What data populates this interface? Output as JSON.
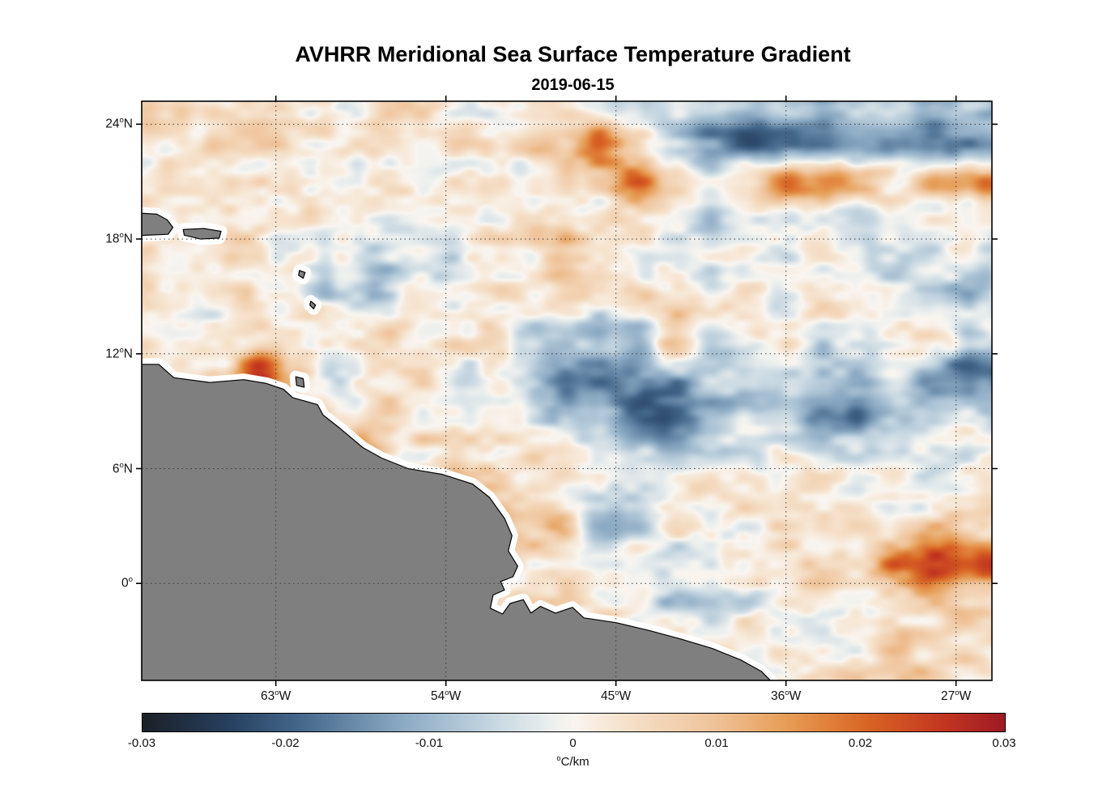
{
  "figure": {
    "title": "AVHRR Meridional Sea Surface Temperature Gradient",
    "subtitle": "2019-06-15"
  },
  "axes": {
    "lon_range": [
      -70.1,
      -25.1
    ],
    "lat_range": [
      -5.07,
      25.2
    ],
    "x_ticks": [
      {
        "lon": -63,
        "label": "63°W"
      },
      {
        "lon": -54,
        "label": "54°W"
      },
      {
        "lon": -45,
        "label": "45°W"
      },
      {
        "lon": -36,
        "label": "36°W"
      },
      {
        "lon": -27,
        "label": "27°W"
      }
    ],
    "y_ticks": [
      {
        "lat": 24,
        "label": "24°N"
      },
      {
        "lat": 18,
        "label": "18°N"
      },
      {
        "lat": 12,
        "label": "12°N"
      },
      {
        "lat": 6,
        "label": "6°N"
      },
      {
        "lat": 0,
        "label": "0°"
      }
    ],
    "grid_style": "dotted"
  },
  "colorbar": {
    "min": -0.03,
    "max": 0.03,
    "ticks": [
      "-0.03",
      "-0.02",
      "-0.01",
      "0",
      "0.01",
      "0.02",
      "0.03"
    ],
    "label": "°C/km",
    "stops": [
      {
        "t": 0.0,
        "c": "#1b2027"
      },
      {
        "t": 0.1,
        "c": "#27405f"
      },
      {
        "t": 0.18,
        "c": "#436689"
      },
      {
        "t": 0.3,
        "c": "#8aa9c3"
      },
      {
        "t": 0.41,
        "c": "#c8d8e2"
      },
      {
        "t": 0.48,
        "c": "#eff1ef"
      },
      {
        "t": 0.5,
        "c": "#f9f5f0"
      },
      {
        "t": 0.55,
        "c": "#f6e4d0"
      },
      {
        "t": 0.66,
        "c": "#efc49b"
      },
      {
        "t": 0.75,
        "c": "#e69b53"
      },
      {
        "t": 0.84,
        "c": "#d96524"
      },
      {
        "t": 0.93,
        "c": "#c23520"
      },
      {
        "t": 1.0,
        "c": "#9d1a24"
      }
    ]
  },
  "chart_data": {
    "type": "heatmap",
    "title": "AVHRR Meridional Sea Surface Temperature Gradient",
    "subtitle": "2019-06-15",
    "units": "°C/km",
    "value_range": [
      -0.03,
      0.03
    ],
    "xlabel_ticks": [
      "63°W",
      "54°W",
      "45°W",
      "36°W",
      "27°W"
    ],
    "ylabel_ticks": [
      "24°N",
      "18°N",
      "12°N",
      "6°N",
      "0°"
    ],
    "grid_lons": [
      -70,
      -68,
      -66,
      -64,
      -62,
      -60,
      -58,
      -56,
      -54,
      -52,
      -50,
      -48,
      -46,
      -44,
      -42,
      -40,
      -38,
      -36,
      -34,
      -32,
      -30,
      -28,
      -26
    ],
    "grid_lats": [
      25,
      23,
      21,
      19,
      17,
      15,
      13,
      11,
      9,
      7,
      5,
      3,
      1,
      -1,
      -3,
      -5
    ],
    "values_scale": 0.001,
    "values": [
      [
        2,
        2,
        1,
        2,
        2,
        3,
        2,
        2,
        1,
        2,
        3,
        4,
        2,
        -2,
        -4,
        -8,
        -6,
        -10,
        -12,
        -8,
        -6,
        -12,
        -8
      ],
      [
        2,
        2,
        2,
        3,
        2,
        2,
        3,
        2,
        3,
        2,
        3,
        8,
        20,
        10,
        -6,
        -15,
        -18,
        -14,
        -16,
        -12,
        -8,
        -14,
        -16
      ],
      [
        2,
        1,
        2,
        2,
        3,
        2,
        2,
        3,
        2,
        2,
        2,
        4,
        6,
        16,
        4,
        -4,
        6,
        18,
        20,
        10,
        2,
        12,
        16
      ],
      [
        2,
        2,
        2,
        2,
        2,
        1,
        2,
        2,
        2,
        2,
        2,
        6,
        3,
        2,
        -2,
        -4,
        -2,
        -4,
        -3,
        -6,
        -4,
        -2,
        -3
      ],
      [
        1,
        2,
        2,
        1,
        2,
        -2,
        -10,
        -4,
        -8,
        2,
        2,
        10,
        2,
        2,
        2,
        -2,
        -3,
        -2,
        -2,
        -4,
        -2,
        -2,
        -4
      ],
      [
        2,
        3,
        2,
        2,
        1,
        -4,
        -6,
        2,
        -2,
        2,
        3,
        2,
        2,
        2,
        2,
        2,
        2,
        -2,
        2,
        2,
        -2,
        -6,
        -8
      ],
      [
        2,
        2,
        2,
        4,
        2,
        2,
        2,
        2,
        2,
        2,
        -2,
        -8,
        -10,
        -6,
        8,
        -2,
        2,
        2,
        -2,
        -2,
        2,
        2,
        -4
      ],
      [
        2,
        2,
        4,
        28,
        6,
        -8,
        2,
        2,
        2,
        -4,
        -6,
        -16,
        -14,
        -12,
        -10,
        -4,
        -6,
        -4,
        -10,
        -12,
        -4,
        -14,
        -16
      ],
      [
        2,
        2,
        2,
        2,
        2,
        2,
        4,
        2,
        2,
        2,
        2,
        -6,
        -10,
        -18,
        -20,
        -14,
        -8,
        -4,
        -14,
        -16,
        -10,
        -4,
        -6
      ],
      [
        2,
        2,
        2,
        2,
        2,
        2,
        16,
        3,
        2,
        2,
        2,
        2,
        -4,
        -8,
        -10,
        -8,
        -6,
        2,
        -2,
        -4,
        -2,
        -4,
        -2
      ],
      [
        2,
        2,
        2,
        2,
        2,
        2,
        2,
        3,
        10,
        6,
        2,
        2,
        -4,
        -6,
        -4,
        2,
        2,
        2,
        2,
        -2,
        2,
        2,
        2
      ],
      [
        2,
        2,
        2,
        2,
        2,
        2,
        2,
        2,
        2,
        2,
        8,
        10,
        -8,
        -6,
        2,
        -2,
        2,
        2,
        2,
        2,
        2,
        8,
        4
      ],
      [
        2,
        2,
        2,
        2,
        2,
        2,
        2,
        2,
        2,
        2,
        2,
        2,
        2,
        2,
        -4,
        -2,
        2,
        2,
        4,
        6,
        18,
        28,
        26
      ],
      [
        2,
        2,
        2,
        2,
        2,
        2,
        2,
        2,
        2,
        2,
        2,
        2,
        2,
        2,
        -6,
        -8,
        -4,
        2,
        2,
        2,
        4,
        6,
        4
      ],
      [
        2,
        2,
        2,
        2,
        2,
        2,
        2,
        2,
        2,
        2,
        2,
        2,
        2,
        2,
        2,
        2,
        2,
        2,
        3,
        4,
        6,
        4,
        3
      ],
      [
        2,
        2,
        2,
        2,
        2,
        2,
        2,
        2,
        2,
        2,
        2,
        2,
        2,
        2,
        2,
        2,
        2,
        2,
        3,
        4,
        6,
        6,
        5
      ]
    ],
    "land_color": "#7f7f7f",
    "coast_halo_color": "#ffffff"
  },
  "land": {
    "color": "#7f7f7f",
    "halo": "#ffffff",
    "polygons": [
      {
        "name": "south-america",
        "points": [
          [
            -71,
            11.45
          ],
          [
            -69.2,
            11.45
          ],
          [
            -68.4,
            10.75
          ],
          [
            -66.5,
            10.5
          ],
          [
            -64.7,
            10.65
          ],
          [
            -63.5,
            10.45
          ],
          [
            -62.6,
            10.15
          ],
          [
            -62.1,
            9.7
          ],
          [
            -60.8,
            9.35
          ],
          [
            -60.5,
            8.8
          ],
          [
            -59.6,
            8.1
          ],
          [
            -58.4,
            7.1
          ],
          [
            -57.4,
            6.55
          ],
          [
            -56.0,
            6.0
          ],
          [
            -54.2,
            5.7
          ],
          [
            -52.6,
            5.2
          ],
          [
            -51.7,
            4.5
          ],
          [
            -50.9,
            3.4
          ],
          [
            -50.5,
            2.5
          ],
          [
            -50.7,
            1.7
          ],
          [
            -50.2,
            0.9
          ],
          [
            -50.45,
            0.35
          ],
          [
            -51.1,
            0.1
          ],
          [
            -50.9,
            -0.35
          ],
          [
            -51.5,
            -0.6
          ],
          [
            -51.65,
            -1.3
          ],
          [
            -51.0,
            -1.6
          ],
          [
            -50.6,
            -1.05
          ],
          [
            -49.9,
            -0.85
          ],
          [
            -49.5,
            -1.55
          ],
          [
            -49.0,
            -1.2
          ],
          [
            -48.2,
            -1.55
          ],
          [
            -47.3,
            -1.25
          ],
          [
            -46.7,
            -1.8
          ],
          [
            -45.0,
            -2.05
          ],
          [
            -43.3,
            -2.45
          ],
          [
            -41.6,
            -2.9
          ],
          [
            -39.9,
            -3.4
          ],
          [
            -38.4,
            -4.0
          ],
          [
            -37.3,
            -4.6
          ],
          [
            -36.5,
            -5.4
          ],
          [
            -36.3,
            -6.2
          ],
          [
            -71,
            -6.2
          ]
        ]
      },
      {
        "name": "hispaniola-east",
        "points": [
          [
            -71,
            19.4
          ],
          [
            -69.3,
            19.3
          ],
          [
            -68.75,
            19.0
          ],
          [
            -68.45,
            18.6
          ],
          [
            -68.7,
            18.25
          ],
          [
            -71,
            18.15
          ]
        ]
      },
      {
        "name": "puerto-rico",
        "points": [
          [
            -67.9,
            18.5
          ],
          [
            -66.8,
            18.55
          ],
          [
            -65.9,
            18.4
          ],
          [
            -66.0,
            18.05
          ],
          [
            -67.0,
            18.0
          ],
          [
            -67.85,
            18.2
          ]
        ]
      },
      {
        "name": "guadeloupe",
        "points": [
          [
            -61.75,
            16.35
          ],
          [
            -61.45,
            16.25
          ],
          [
            -61.55,
            15.95
          ],
          [
            -61.8,
            16.1
          ]
        ]
      },
      {
        "name": "martinique",
        "points": [
          [
            -61.15,
            14.75
          ],
          [
            -60.9,
            14.55
          ],
          [
            -61.0,
            14.35
          ],
          [
            -61.2,
            14.55
          ]
        ]
      },
      {
        "name": "trinidad",
        "points": [
          [
            -61.95,
            10.8
          ],
          [
            -61.55,
            10.7
          ],
          [
            -61.5,
            10.25
          ],
          [
            -61.9,
            10.35
          ]
        ]
      }
    ]
  }
}
